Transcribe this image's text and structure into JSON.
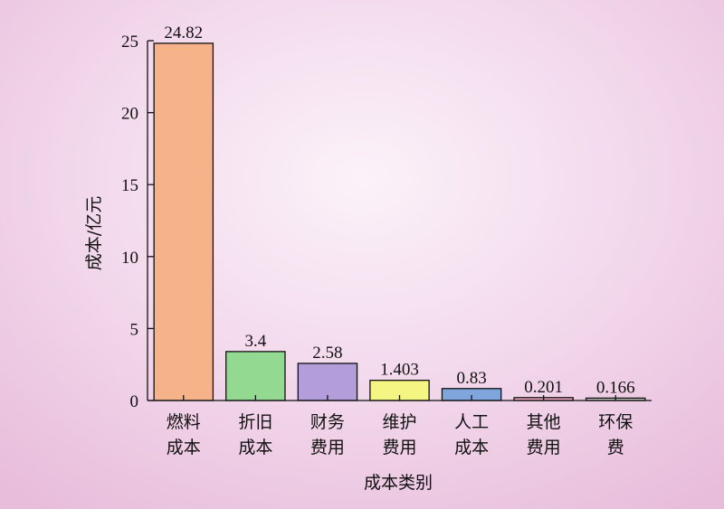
{
  "chart_data": {
    "type": "bar",
    "categories": [
      [
        "燃料",
        "成本"
      ],
      [
        "折旧",
        "成本"
      ],
      [
        "财务",
        "费用"
      ],
      [
        "维护",
        "费用"
      ],
      [
        "人工",
        "成本"
      ],
      [
        "其他",
        "费用"
      ],
      [
        "环保",
        "费"
      ]
    ],
    "values": [
      24.82,
      3.4,
      2.58,
      1.403,
      0.83,
      0.201,
      0.166
    ],
    "data_labels": [
      "24.82",
      "3.4",
      "2.58",
      "1.403",
      "0.83",
      "0.201",
      "0.166"
    ],
    "colors": [
      "#f6b38a",
      "#93d992",
      "#b39ddb",
      "#f5f584",
      "#7ea6dc",
      "#f2a7c0",
      "#c8c8c8"
    ],
    "xlabel": "成本类别",
    "ylabel": "成本/亿元",
    "ylim": [
      0,
      25
    ],
    "yticks": [
      0,
      5,
      10,
      15,
      20,
      25
    ],
    "grid": false
  }
}
